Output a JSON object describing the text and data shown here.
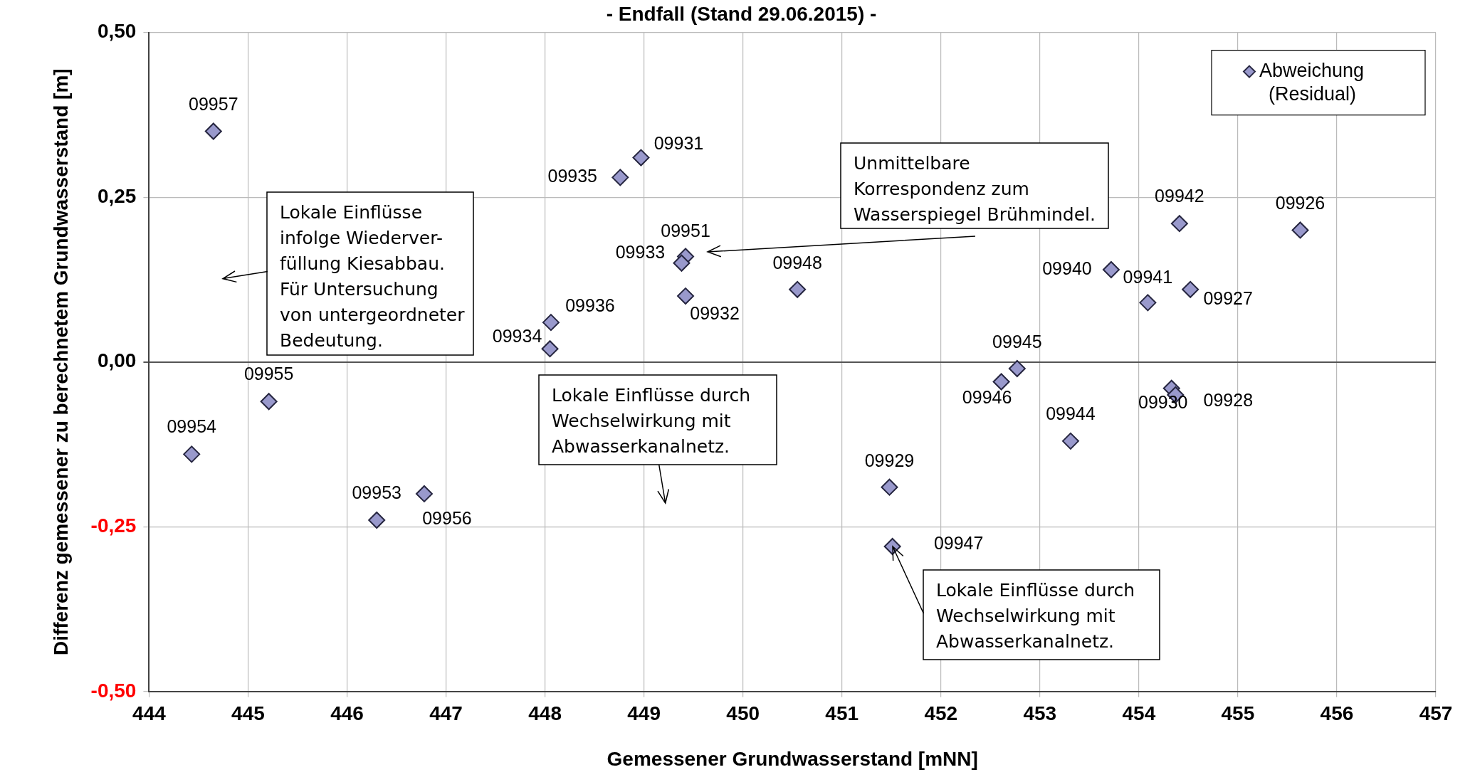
{
  "chart_data": {
    "type": "scatter",
    "title": "- Endfall (Stand 29.06.2015) -",
    "xlabel": "Gemessener Grundwasserstand [mNN]",
    "ylabel": "Differenz gemessener zu berechnetem Grundwasserstand [m]",
    "xlim": [
      444,
      457
    ],
    "xticks": [
      444,
      445,
      446,
      447,
      448,
      449,
      450,
      451,
      452,
      453,
      454,
      455,
      456,
      457
    ],
    "ylim": [
      -0.5,
      0.5
    ],
    "yticks": [
      {
        "value": -0.5,
        "label": "-0,50"
      },
      {
        "value": -0.25,
        "label": "-0,25"
      },
      {
        "value": 0,
        "label": "0,00"
      },
      {
        "value": 0.25,
        "label": "0,25"
      },
      {
        "value": 0.5,
        "label": "0,50"
      }
    ],
    "grid": true,
    "legend": "top right",
    "marker": "diamond",
    "series": [
      {
        "name": "Abweichung (Residual)",
        "color": "#9999cc",
        "x": [
          444.65,
          448.97,
          448.76,
          449.42,
          449.38,
          449.42,
          448.06,
          448.05,
          450.55,
          453.72,
          454.41,
          455.63,
          454.09,
          454.52,
          452.77,
          452.61,
          454.33,
          454.37,
          453.31,
          451.48,
          451.51,
          445.21,
          444.43,
          446.3,
          446.78
        ],
        "values": [
          0.35,
          0.31,
          0.28,
          0.16,
          0.15,
          0.1,
          0.06,
          0.02,
          0.11,
          0.14,
          0.21,
          0.2,
          0.09,
          0.11,
          -0.01,
          -0.03,
          -0.04,
          -0.05,
          -0.12,
          -0.19,
          -0.28,
          -0.06,
          -0.14,
          -0.24,
          -0.2
        ]
      }
    ],
    "annotations": [
      {
        "text": "09957",
        "x": 444.65,
        "y": 0.35
      },
      {
        "text": "09931",
        "x": 448.97,
        "y": 0.31
      },
      {
        "text": "09935",
        "x": 448.76,
        "y": 0.28
      },
      {
        "text": "09951",
        "x": 449.42,
        "y": 0.16
      },
      {
        "text": "09933",
        "x": 449.38,
        "y": 0.15
      },
      {
        "text": "09932",
        "x": 449.42,
        "y": 0.1
      },
      {
        "text": "09936",
        "x": 448.06,
        "y": 0.06
      },
      {
        "text": "09934",
        "x": 448.05,
        "y": 0.02
      },
      {
        "text": "09948",
        "x": 450.55,
        "y": 0.11
      },
      {
        "text": "09940",
        "x": 453.72,
        "y": 0.14
      },
      {
        "text": "09942",
        "x": 454.41,
        "y": 0.21
      },
      {
        "text": "09926",
        "x": 455.63,
        "y": 0.2
      },
      {
        "text": "09941",
        "x": 454.09,
        "y": 0.09
      },
      {
        "text": "09927",
        "x": 454.52,
        "y": 0.11
      },
      {
        "text": "09945",
        "x": 452.77,
        "y": -0.01
      },
      {
        "text": "09946",
        "x": 452.61,
        "y": -0.03
      },
      {
        "text": "09930",
        "x": 454.33,
        "y": -0.04
      },
      {
        "text": "09928",
        "x": 454.37,
        "y": -0.05
      },
      {
        "text": "09944",
        "x": 453.31,
        "y": -0.12
      },
      {
        "text": "09929",
        "x": 451.48,
        "y": -0.19
      },
      {
        "text": "09947",
        "x": 451.51,
        "y": -0.28
      },
      {
        "text": "09955",
        "x": 445.21,
        "y": -0.06
      },
      {
        "text": "09954",
        "x": 444.43,
        "y": -0.14
      },
      {
        "text": "09953",
        "x": 446.3,
        "y": -0.24
      },
      {
        "text": "09956",
        "x": 446.78,
        "y": -0.2
      },
      "Lokale Einflüsse\ninfolge Wiederver-\nfüllung Kiesabbau.\nFür Untersuchung\nvon untergeordneter\nBedeutung.",
      "Unmittelbare\nKorrespondenz zum\nWasserspiegel Brühmindel.",
      "Lokale Einflüsse durch\nWechselwirkung mit\nAbwasserkanalnetz.",
      {
        "text": "Lokale Einflüsse durch\nWechselwirkung mit\nAbwasserkanalnetz.",
        "x": 451.51,
        "y": -0.28
      }
    ]
  }
}
